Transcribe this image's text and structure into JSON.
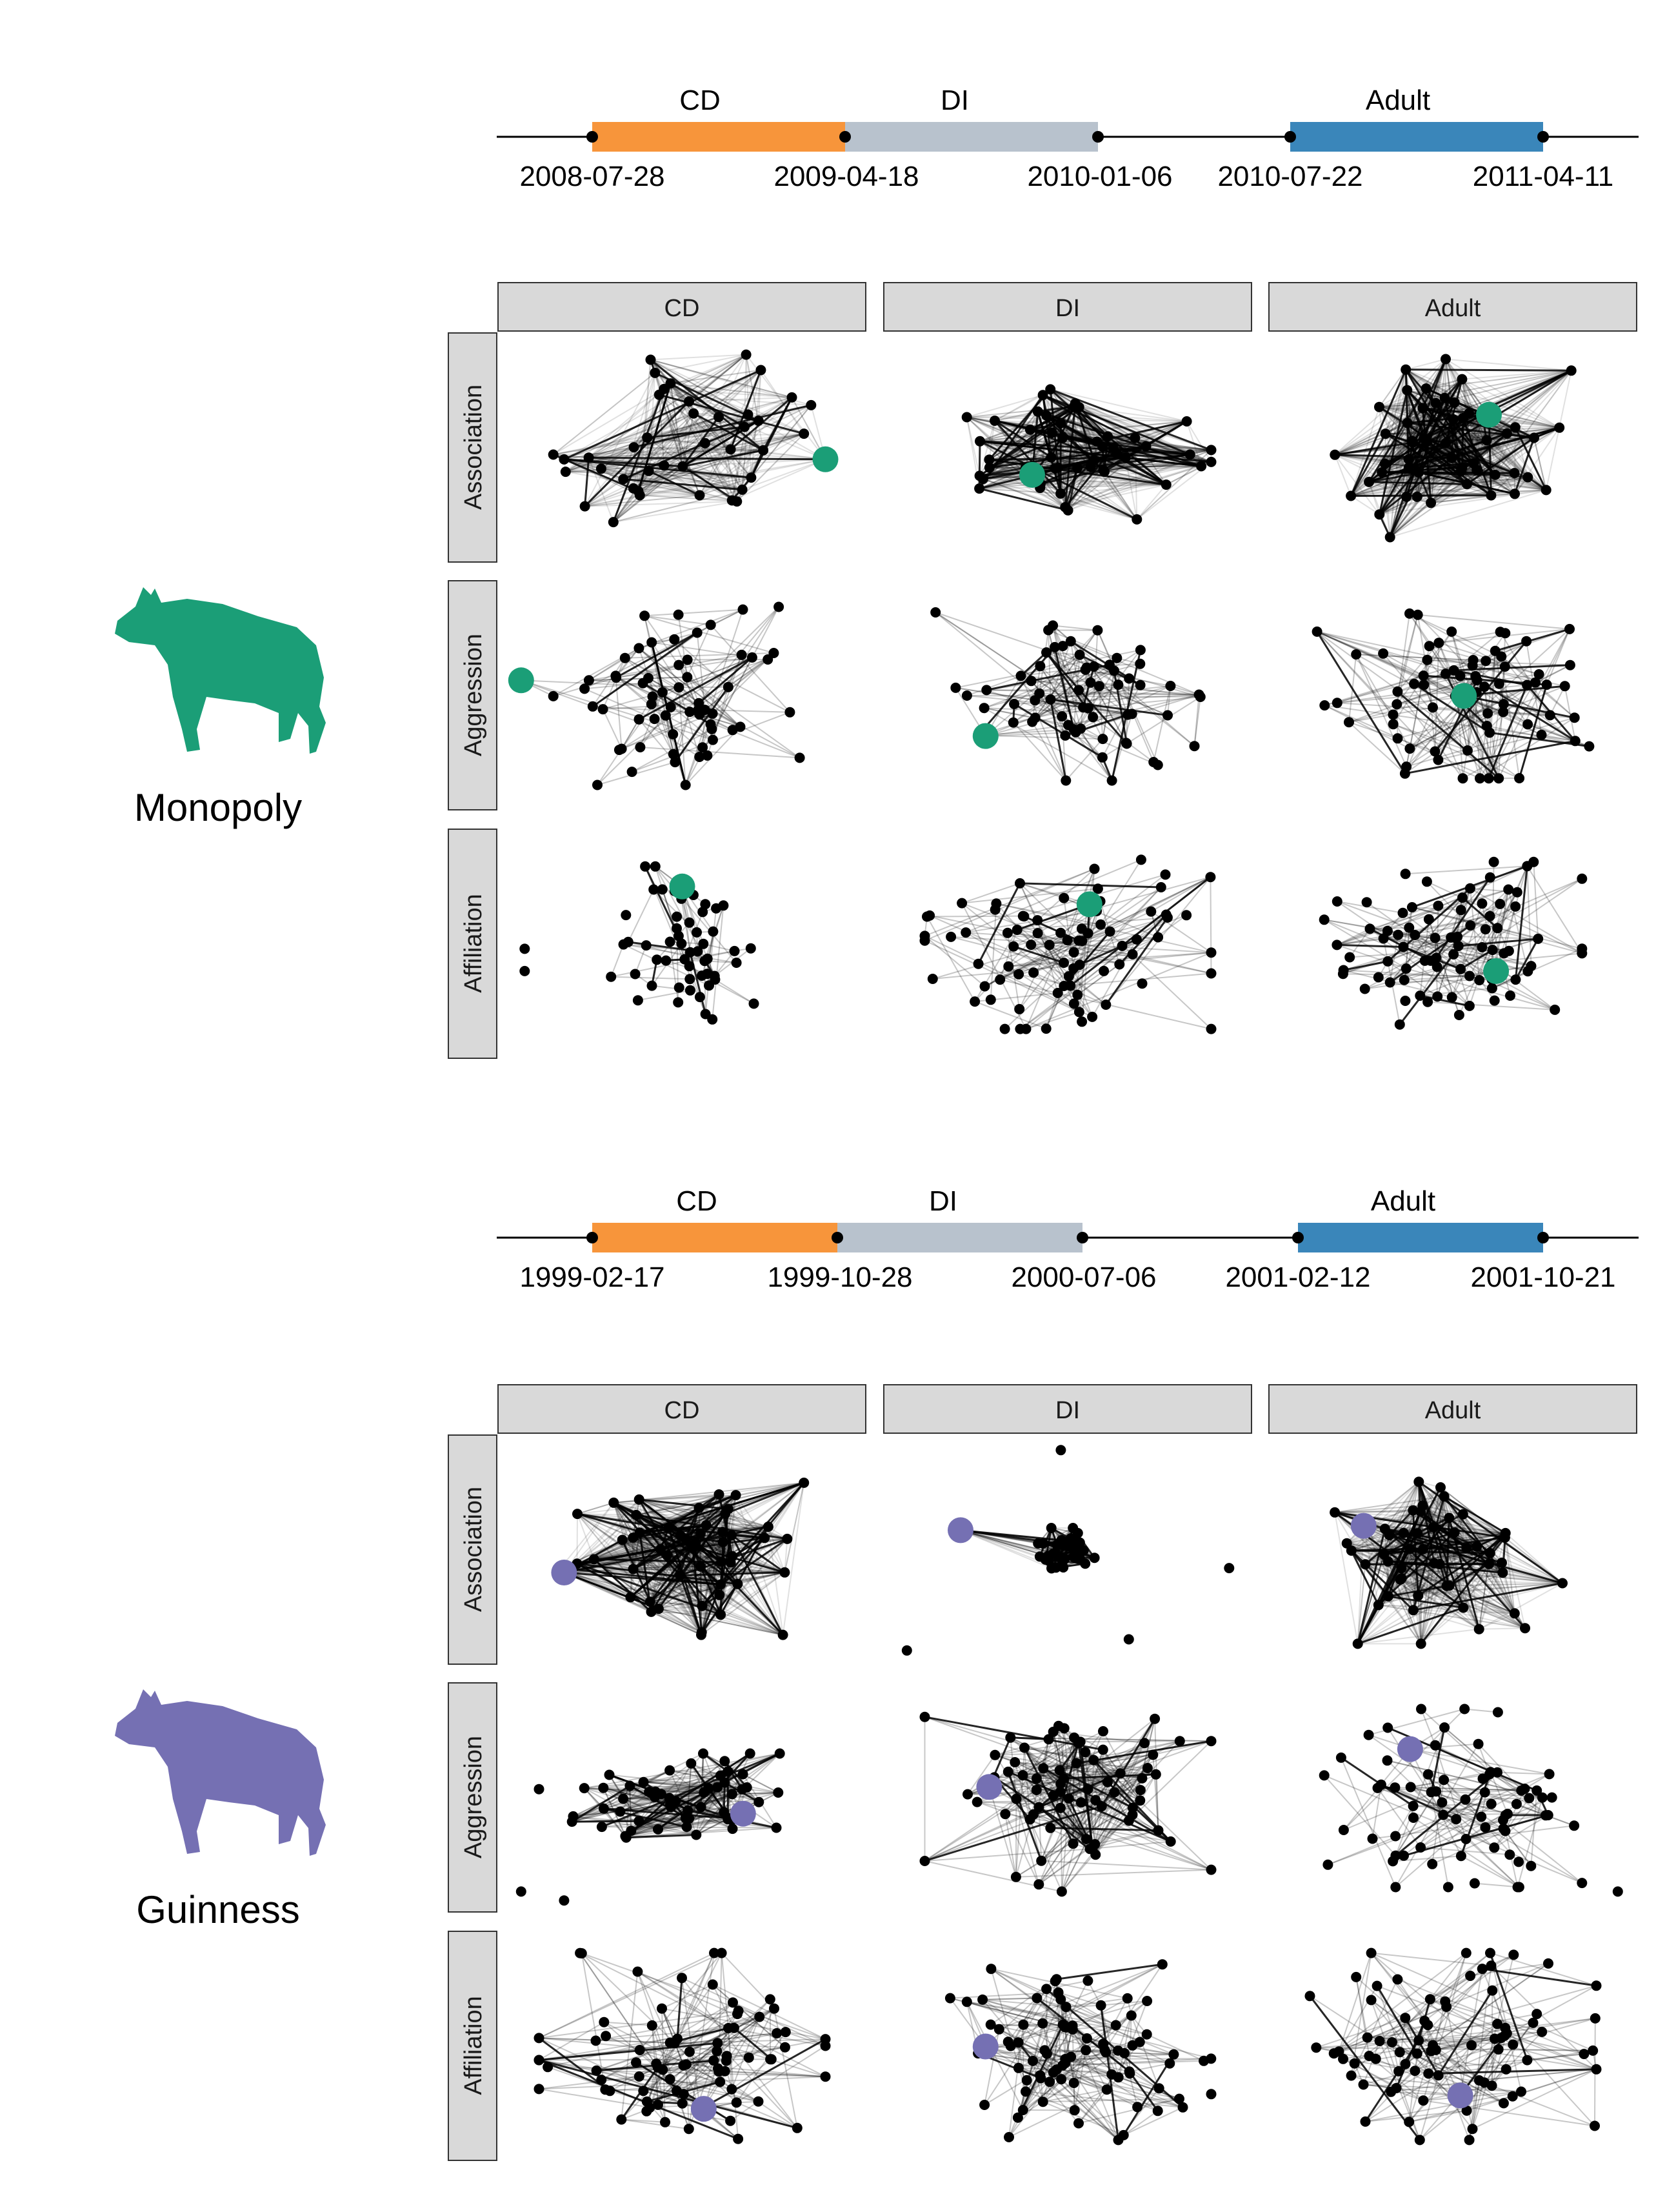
{
  "colors": {
    "cd_bar": "#F7953B",
    "di_bar": "#B8C2CD",
    "adult_bar": "#3A86BA",
    "strip_bg": "#D9D9D9",
    "monopoly_accent": "#1B9E77",
    "guinness_accent": "#7570B3",
    "node": "#000000",
    "edge": "#000000"
  },
  "columns": [
    "CD",
    "DI",
    "Adult"
  ],
  "rows": [
    "Association",
    "Aggression",
    "Affiliation"
  ],
  "individuals": [
    {
      "name": "Monopoly",
      "icon": "hyena-silhouette-icon",
      "accent": "#1B9E77",
      "timeline": {
        "stage_labels": [
          "CD",
          "DI",
          "Adult"
        ],
        "dates": [
          "2008-07-28",
          "2009-04-18",
          "2010-01-06",
          "2010-07-22",
          "2011-04-11"
        ]
      },
      "networks": [
        {
          "stage": "CD",
          "layer": "Association",
          "nodes": 40,
          "density": 0.55,
          "focal": [
            0.9,
            0.55
          ],
          "spread": [
            0.36,
            0.42
          ],
          "isolates": []
        },
        {
          "stage": "DI",
          "layer": "Association",
          "nodes": 48,
          "density": 0.7,
          "focal": [
            0.4,
            0.62
          ],
          "spread": [
            0.4,
            0.32
          ],
          "isolates": []
        },
        {
          "stage": "Adult",
          "layer": "Association",
          "nodes": 52,
          "density": 0.85,
          "focal": [
            0.6,
            0.35
          ],
          "spread": [
            0.33,
            0.4
          ],
          "isolates": []
        },
        {
          "stage": "CD",
          "layer": "Aggression",
          "nodes": 60,
          "density": 0.08,
          "focal": [
            0.05,
            0.43
          ],
          "spread": [
            0.36,
            0.4
          ],
          "isolates": []
        },
        {
          "stage": "DI",
          "layer": "Aggression",
          "nodes": 62,
          "density": 0.09,
          "focal": [
            0.27,
            0.68
          ],
          "spread": [
            0.37,
            0.38
          ],
          "isolates": []
        },
        {
          "stage": "Adult",
          "layer": "Aggression",
          "nodes": 70,
          "density": 0.08,
          "focal": [
            0.53,
            0.5
          ],
          "spread": [
            0.38,
            0.37
          ],
          "isolates": []
        },
        {
          "stage": "CD",
          "layer": "Affiliation",
          "nodes": 52,
          "density": 0.05,
          "focal": [
            0.5,
            0.24
          ],
          "spread": [
            0.2,
            0.35
          ],
          "isolates": [
            [
              0.06,
              0.52
            ],
            [
              0.06,
              0.62
            ]
          ]
        },
        {
          "stage": "DI",
          "layer": "Affiliation",
          "nodes": 78,
          "density": 0.05,
          "focal": [
            0.56,
            0.32
          ],
          "spread": [
            0.4,
            0.38
          ],
          "isolates": []
        },
        {
          "stage": "Adult",
          "layer": "Affiliation",
          "nodes": 80,
          "density": 0.05,
          "focal": [
            0.62,
            0.62
          ],
          "spread": [
            0.36,
            0.37
          ],
          "isolates": []
        }
      ]
    },
    {
      "name": "Guinness",
      "icon": "hyena-silhouette-icon",
      "accent": "#7570B3",
      "timeline": {
        "stage_labels": [
          "CD",
          "DI",
          "Adult"
        ],
        "dates": [
          "1999-02-17",
          "1999-10-28",
          "2000-07-06",
          "2001-02-12",
          "2001-10-21"
        ]
      },
      "networks": [
        {
          "stage": "CD",
          "layer": "Association",
          "nodes": 50,
          "density": 0.85,
          "focal": [
            0.17,
            0.6
          ],
          "spread": [
            0.34,
            0.38
          ],
          "isolates": []
        },
        {
          "stage": "DI",
          "layer": "Association",
          "nodes": 36,
          "density": 0.9,
          "focal": [
            0.2,
            0.41
          ],
          "spread": [
            0.1,
            0.1
          ],
          "isolates": [
            [
              0.48,
              0.05
            ],
            [
              0.95,
              0.58
            ],
            [
              0.05,
              0.95
            ],
            [
              0.67,
              0.9
            ]
          ]
        },
        {
          "stage": "Adult",
          "layer": "Association",
          "nodes": 48,
          "density": 0.7,
          "focal": [
            0.25,
            0.39
          ],
          "spread": [
            0.36,
            0.42
          ],
          "isolates": []
        },
        {
          "stage": "CD",
          "layer": "Aggression",
          "nodes": 55,
          "density": 0.2,
          "focal": [
            0.67,
            0.57
          ],
          "spread": [
            0.32,
            0.2
          ],
          "isolates": [
            [
              0.1,
              0.46
            ],
            [
              0.05,
              0.92
            ],
            [
              0.17,
              0.96
            ]
          ]
        },
        {
          "stage": "DI",
          "layer": "Aggression",
          "nodes": 72,
          "density": 0.12,
          "focal": [
            0.28,
            0.45
          ],
          "spread": [
            0.4,
            0.42
          ],
          "isolates": []
        },
        {
          "stage": "Adult",
          "layer": "Aggression",
          "nodes": 70,
          "density": 0.05,
          "focal": [
            0.38,
            0.28
          ],
          "spread": [
            0.36,
            0.4
          ],
          "isolates": [
            [
              0.96,
              0.92
            ]
          ]
        },
        {
          "stage": "CD",
          "layer": "Affiliation",
          "nodes": 78,
          "density": 0.06,
          "focal": [
            0.56,
            0.78
          ],
          "spread": [
            0.4,
            0.42
          ],
          "isolates": []
        },
        {
          "stage": "DI",
          "layer": "Affiliation",
          "nodes": 82,
          "density": 0.07,
          "focal": [
            0.27,
            0.5
          ],
          "spread": [
            0.4,
            0.42
          ],
          "isolates": []
        },
        {
          "stage": "Adult",
          "layer": "Affiliation",
          "nodes": 78,
          "density": 0.06,
          "focal": [
            0.52,
            0.72
          ],
          "spread": [
            0.4,
            0.42
          ],
          "isolates": []
        }
      ]
    }
  ]
}
